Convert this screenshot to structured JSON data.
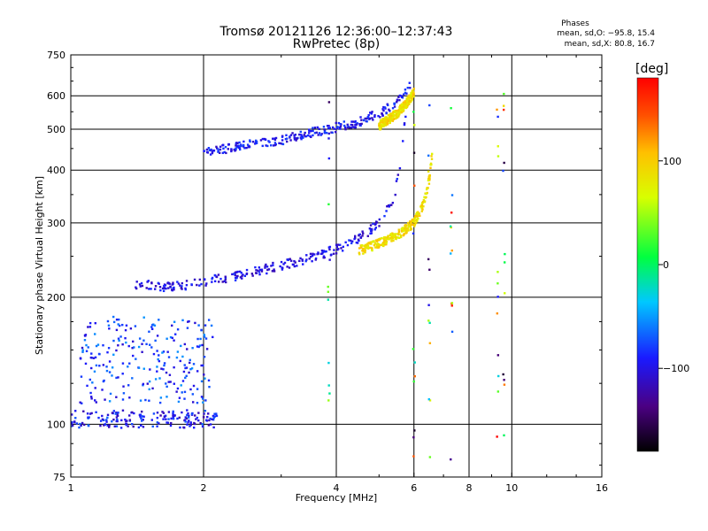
{
  "chart_data": {
    "type": "scatter",
    "title": "Tromsø 20121126 12:36:00–12:37:43",
    "subtitle": "RwPretec (8p)",
    "xlabel": "Frequency [MHz]",
    "ylabel": "Stationary phase Virtual Height [km]",
    "x_scale": "log2",
    "y_scale": "log",
    "xlim": [
      1,
      16
    ],
    "ylim": [
      75,
      750
    ],
    "x_ticks": [
      "1",
      "2",
      "4",
      "6",
      "8",
      "10",
      "16"
    ],
    "x_tick_values": [
      1,
      2,
      4,
      6,
      8,
      10,
      16
    ],
    "y_ticks": [
      "75",
      "100",
      "200",
      "300",
      "400",
      "500",
      "600",
      "750"
    ],
    "y_tick_values": [
      75,
      100,
      200,
      300,
      400,
      500,
      600,
      750
    ],
    "grid": true,
    "phases_header": "Phases",
    "phases_o": "mean, sd,O: −95.8, 15.4",
    "phases_x": "mean, sd,X:  80.8, 16.7",
    "colorbar": {
      "label": "[deg]",
      "range": [
        -180,
        180
      ],
      "ticks": [
        "100",
        "0",
        "−100"
      ],
      "tick_values": [
        100,
        0,
        -100
      ]
    },
    "traces": [
      {
        "trace": "low-echo-band",
        "x_range": [
          1.0,
          2.15
        ],
        "h_range": [
          98,
          108
        ],
        "phase": -95
      },
      {
        "trace": "low-echo-scatter",
        "x_range": [
          1.05,
          2.1
        ],
        "h_range": [
          112,
          180
        ],
        "phase": -80
      },
      {
        "trace": "F-O-trace",
        "x": [
          1.4,
          1.6,
          1.8,
          2.0,
          2.4,
          3.0,
          3.5,
          4.0,
          4.5,
          5.0,
          5.4,
          5.6,
          5.75
        ],
        "h": [
          215,
          212,
          213,
          218,
          225,
          238,
          248,
          260,
          275,
          300,
          340,
          420,
          550
        ],
        "phase": -100
      },
      {
        "trace": "F-X-trace",
        "x": [
          4.5,
          5.0,
          5.5,
          6.0,
          6.3,
          6.5,
          6.6
        ],
        "h": [
          258,
          268,
          280,
          300,
          330,
          380,
          440
        ],
        "phase": 90
      },
      {
        "trace": "F2-O-multihop",
        "x": [
          2.0,
          2.5,
          3.0,
          3.5,
          4.0,
          4.5,
          5.0,
          5.4,
          5.7,
          5.9
        ],
        "h": [
          440,
          458,
          470,
          490,
          505,
          520,
          545,
          570,
          605,
          640
        ],
        "phase": -95
      },
      {
        "trace": "F2-X-multihop",
        "x": [
          5.0,
          5.5,
          5.8,
          6.0
        ],
        "h": [
          510,
          545,
          580,
          610
        ],
        "phase": 90
      },
      {
        "trace": "noise-columns",
        "x": [
          3.85,
          6.0,
          6.5,
          7.3,
          9.3,
          9.6
        ],
        "h_range": [
          78,
          620
        ],
        "phase": 0
      }
    ]
  }
}
